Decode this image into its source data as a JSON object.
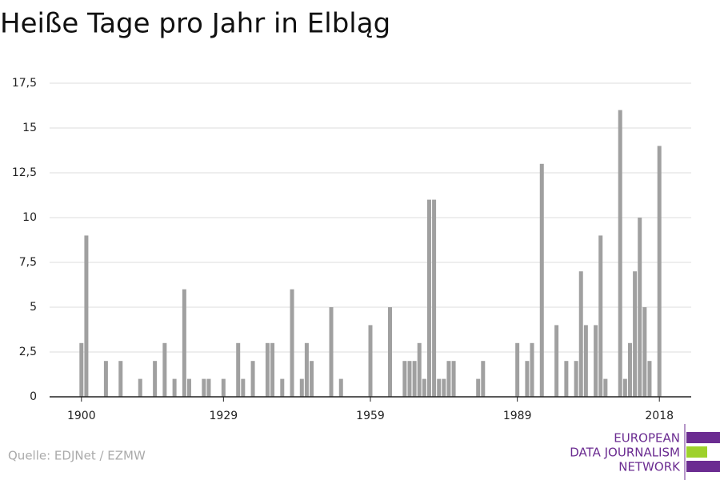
{
  "chart_data": {
    "type": "bar",
    "title": "Heiße Tage pro Jahr in Elbląg",
    "source": "Quelle: EDJNet / EZMW",
    "logo": [
      "EUROPEAN",
      "DATA JOURNALISM",
      "NETWORK"
    ],
    "x": [
      1900,
      1901,
      1905,
      1908,
      1912,
      1915,
      1917,
      1919,
      1921,
      1922,
      1925,
      1926,
      1929,
      1932,
      1933,
      1935,
      1938,
      1939,
      1941,
      1943,
      1945,
      1946,
      1947,
      1951,
      1953,
      1959,
      1963,
      1966,
      1967,
      1968,
      1969,
      1970,
      1971,
      1972,
      1973,
      1974,
      1975,
      1976,
      1981,
      1982,
      1989,
      1991,
      1992,
      1994,
      1997,
      1999,
      2001,
      2002,
      2003,
      2005,
      2006,
      2007,
      2010,
      2011,
      2012,
      2013,
      2014,
      2015,
      2016,
      2018
    ],
    "values": [
      3,
      9,
      2,
      2,
      1,
      2,
      3,
      1,
      6,
      1,
      1,
      1,
      1,
      3,
      1,
      2,
      3,
      3,
      1,
      6,
      1,
      3,
      2,
      5,
      1,
      4,
      5,
      2,
      2,
      2,
      3,
      1,
      11,
      11,
      1,
      1,
      2,
      2,
      1,
      2,
      3,
      2,
      3,
      13,
      4,
      2,
      2,
      7,
      4,
      4,
      9,
      1,
      16,
      1,
      3,
      7,
      10,
      5,
      2,
      14
    ],
    "color": "#a0a0a0",
    "xlim": [
      1893.5,
      2024.5
    ],
    "xticks": [
      1900,
      1929,
      1959,
      1989,
      2018
    ],
    "ylim": [
      0,
      17.5
    ],
    "yticks": [
      0,
      {
        "value": 2.5,
        "label": "2,5"
      },
      5,
      {
        "value": 7.5,
        "label": "7,5"
      },
      10,
      {
        "value": 12.5,
        "label": "12,5"
      },
      15,
      {
        "value": 17.5,
        "label": "17,5"
      }
    ],
    "grid": true
  }
}
